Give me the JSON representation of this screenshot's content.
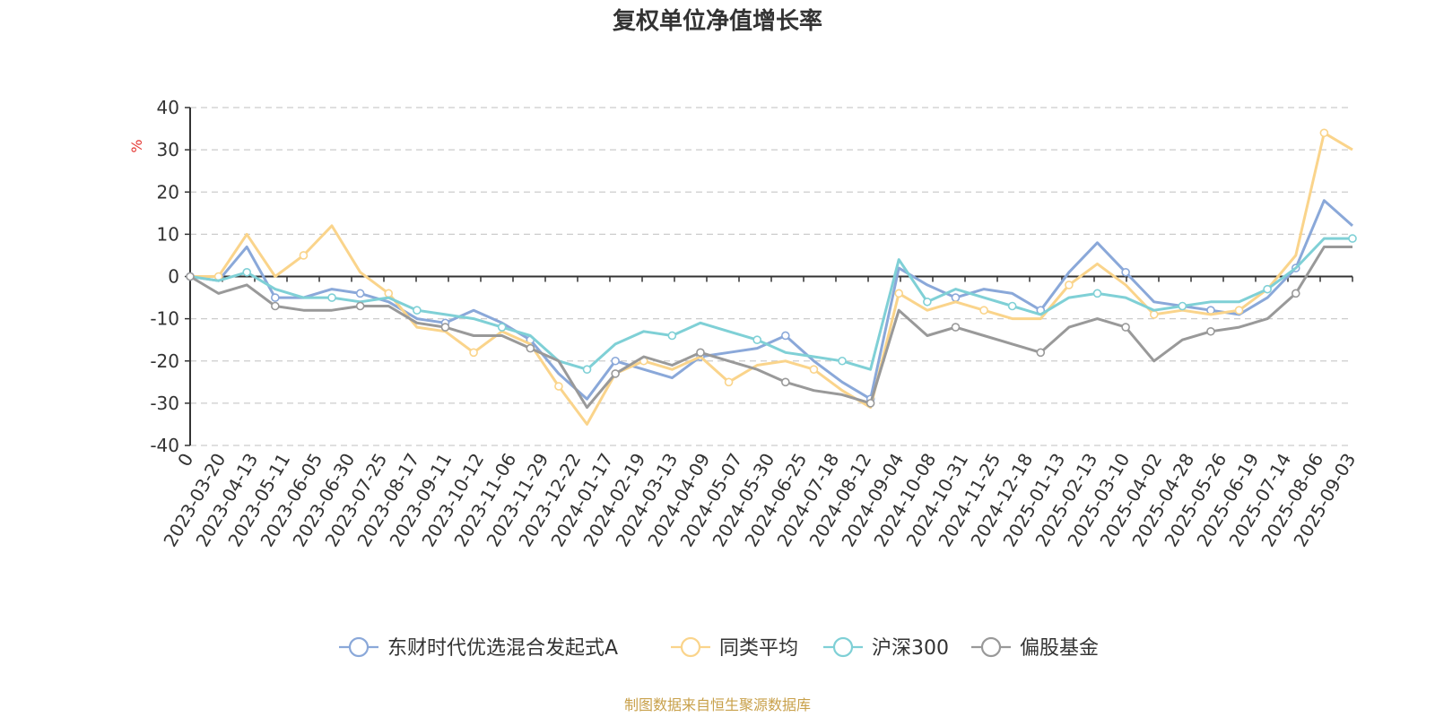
{
  "chart_data": {
    "type": "line",
    "title": "复权单位净值增长率",
    "ylabel": "%",
    "ylim": [
      -40,
      40
    ],
    "yticks": [
      40,
      30,
      20,
      10,
      0,
      -10,
      -20,
      -30,
      -40
    ],
    "grid": true,
    "legend_position": "bottom",
    "x_tick_labels": [
      "0",
      "2023-03-20",
      "2023-04-13",
      "2023-05-11",
      "2023-06-05",
      "2023-06-30",
      "2023-07-25",
      "2023-08-17",
      "2023-09-11",
      "2023-10-12",
      "2023-11-06",
      "2023-11-29",
      "2023-12-22",
      "2024-01-17",
      "2024-02-19",
      "2024-03-13",
      "2024-04-09",
      "2024-05-07",
      "2024-05-30",
      "2024-06-25",
      "2024-07-18",
      "2024-08-12",
      "2024-09-04",
      "2024-10-08",
      "2024-10-31",
      "2024-11-25",
      "2024-12-18",
      "2025-01-13",
      "2025-02-13",
      "2025-03-10",
      "2025-04-02",
      "2025-04-28",
      "2025-05-26",
      "2025-06-19",
      "2025-07-14",
      "2025-08-06",
      "2025-09-03"
    ],
    "series": [
      {
        "name": "东财时代优选混合发起式A",
        "color": "#8aa8d9",
        "values": [
          0,
          -1,
          7,
          -5,
          -5,
          -3,
          -4,
          -6,
          -10,
          -11,
          -8,
          -11,
          -15,
          -23,
          -29,
          -20,
          -22,
          -24,
          -19,
          -18,
          -17,
          -14,
          -20,
          -25,
          -29,
          2,
          -2,
          -5,
          -3,
          -4,
          -8,
          1,
          8,
          1,
          -6,
          -7,
          -8,
          -9,
          -5,
          2,
          18,
          12
        ]
      },
      {
        "name": "同类平均",
        "color": "#fad48b",
        "values": [
          0,
          0,
          10,
          0,
          5,
          12,
          1,
          -4,
          -12,
          -13,
          -18,
          -13,
          -16,
          -26,
          -35,
          -23,
          -20,
          -22,
          -19,
          -25,
          -21,
          -20,
          -22,
          -27,
          -31,
          -4,
          -8,
          -6,
          -8,
          -10,
          -10,
          -2,
          3,
          -2,
          -9,
          -8,
          -9,
          -8,
          -3,
          5,
          34,
          30
        ]
      },
      {
        "name": "沪深300",
        "color": "#7fd0d6",
        "values": [
          0,
          -1,
          1,
          -3,
          -5,
          -5,
          -6,
          -5,
          -8,
          -9,
          -10,
          -12,
          -14,
          -20,
          -22,
          -16,
          -13,
          -14,
          -11,
          -13,
          -15,
          -18,
          -19,
          -20,
          -22,
          4,
          -6,
          -3,
          -5,
          -7,
          -9,
          -5,
          -4,
          -5,
          -8,
          -7,
          -6,
          -6,
          -3,
          2,
          9,
          9
        ]
      },
      {
        "name": "偏股基金",
        "color": "#999999",
        "values": [
          0,
          -4,
          -2,
          -7,
          -8,
          -8,
          -7,
          -7,
          -11,
          -12,
          -14,
          -14,
          -17,
          -20,
          -31,
          -23,
          -19,
          -21,
          -18,
          -20,
          -22,
          -25,
          -27,
          -28,
          -30,
          -8,
          -14,
          -12,
          -14,
          -16,
          -18,
          -12,
          -10,
          -12,
          -20,
          -15,
          -13,
          -12,
          -10,
          -4,
          7,
          7
        ]
      }
    ]
  },
  "source_note": "制图数据来自恒生聚源数据库",
  "colors": {
    "axis": "#333333",
    "grid": "#cccccc",
    "unit": "#e53935",
    "source": "#c8a04a"
  }
}
